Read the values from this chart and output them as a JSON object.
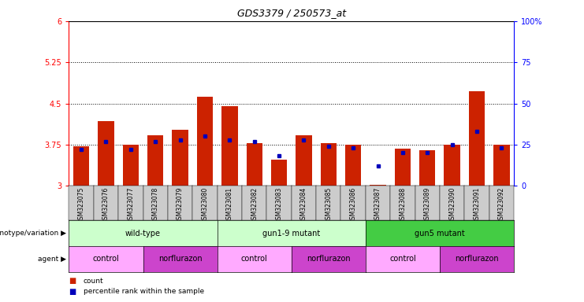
{
  "title": "GDS3379 / 250573_at",
  "samples": [
    "GSM323075",
    "GSM323076",
    "GSM323077",
    "GSM323078",
    "GSM323079",
    "GSM323080",
    "GSM323081",
    "GSM323082",
    "GSM323083",
    "GSM323084",
    "GSM323085",
    "GSM323086",
    "GSM323087",
    "GSM323088",
    "GSM323089",
    "GSM323090",
    "GSM323091",
    "GSM323092"
  ],
  "counts": [
    3.72,
    4.18,
    3.75,
    3.92,
    4.02,
    4.62,
    4.45,
    3.78,
    3.48,
    3.92,
    3.78,
    3.75,
    3.02,
    3.68,
    3.65,
    3.75,
    4.72,
    3.75
  ],
  "percentiles": [
    22,
    27,
    22,
    27,
    28,
    30,
    28,
    27,
    18,
    28,
    24,
    23,
    12,
    20,
    20,
    25,
    33,
    23
  ],
  "ymin": 3.0,
  "ymax": 6.0,
  "yticks_left": [
    3.0,
    3.75,
    4.5,
    5.25,
    6.0
  ],
  "ytick_labels_left": [
    "3",
    "3.75",
    "4.5",
    "5.25",
    "6"
  ],
  "ytick_labels_right": [
    "0",
    "25",
    "50",
    "75",
    "100%"
  ],
  "pct_min": 0,
  "pct_max": 100,
  "dotted_lines_pct": [
    25,
    50,
    75
  ],
  "bar_color": "#cc2200",
  "marker_color": "#0000bb",
  "geno_groups": [
    {
      "label": "wild-type",
      "start": 0,
      "end": 5,
      "color": "#ccffcc"
    },
    {
      "label": "gun1-9 mutant",
      "start": 6,
      "end": 11,
      "color": "#ccffcc"
    },
    {
      "label": "gun5 mutant",
      "start": 12,
      "end": 17,
      "color": "#44cc44"
    }
  ],
  "agent_groups": [
    {
      "label": "control",
      "start": 0,
      "end": 2,
      "color": "#ffaaff"
    },
    {
      "label": "norflurazon",
      "start": 3,
      "end": 5,
      "color": "#cc44cc"
    },
    {
      "label": "control",
      "start": 6,
      "end": 8,
      "color": "#ffaaff"
    },
    {
      "label": "norflurazon",
      "start": 9,
      "end": 11,
      "color": "#cc44cc"
    },
    {
      "label": "control",
      "start": 12,
      "end": 14,
      "color": "#ffaaff"
    },
    {
      "label": "norflurazon",
      "start": 15,
      "end": 17,
      "color": "#cc44cc"
    }
  ],
  "sample_bg_color": "#cccccc",
  "fig_width": 7.41,
  "fig_height": 3.84,
  "dpi": 100
}
